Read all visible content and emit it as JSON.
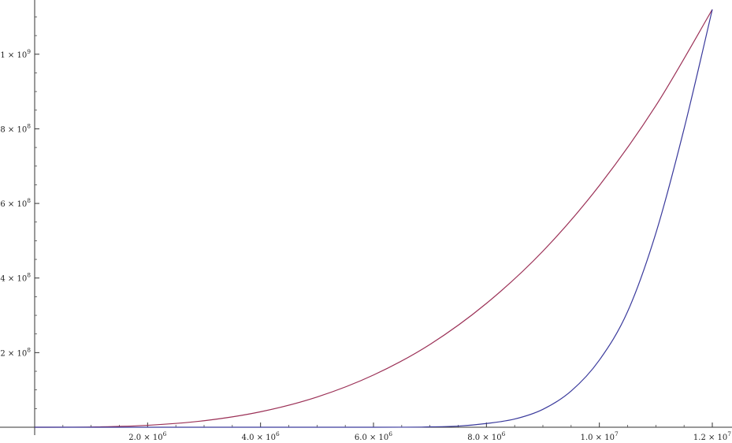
{
  "chart_data": {
    "type": "line",
    "title": "",
    "xlabel": "",
    "ylabel": "",
    "xlim": [
      0,
      12000000
    ],
    "ylim": [
      0,
      1120000000
    ],
    "grid": false,
    "legend": "none",
    "x_ticks": [
      {
        "value": 2000000,
        "mantissa": "2.0",
        "base": "× 10",
        "exp": "6"
      },
      {
        "value": 4000000,
        "mantissa": "4.0",
        "base": "× 10",
        "exp": "6"
      },
      {
        "value": 6000000,
        "mantissa": "6.0",
        "base": "× 10",
        "exp": "6"
      },
      {
        "value": 8000000,
        "mantissa": "8.0",
        "base": "× 10",
        "exp": "6"
      },
      {
        "value": 10000000,
        "mantissa": "1.0",
        "base": "× 10",
        "exp": "7"
      },
      {
        "value": 12000000,
        "mantissa": "1.2",
        "base": "× 10",
        "exp": "7"
      }
    ],
    "y_ticks": [
      {
        "value": 200000000,
        "mantissa": "2",
        "base": "× 10",
        "exp": "8"
      },
      {
        "value": 400000000,
        "mantissa": "4",
        "base": "× 10",
        "exp": "8"
      },
      {
        "value": 600000000,
        "mantissa": "6",
        "base": "× 10",
        "exp": "8"
      },
      {
        "value": 800000000,
        "mantissa": "8",
        "base": "× 10",
        "exp": "8"
      },
      {
        "value": 1000000000,
        "mantissa": "1",
        "base": "× 10",
        "exp": "9"
      }
    ],
    "series": [
      {
        "color": "#9b3056",
        "x": [
          0,
          1000000,
          2000000,
          3000000,
          4000000,
          5000000,
          6000000,
          7000000,
          8000000,
          9000000,
          10000000,
          11000000,
          12000000
        ],
        "y": [
          0,
          650000,
          5200000,
          17500000,
          41500000,
          81000000,
          140000000,
          222000000,
          332000000,
          472000000,
          648000000,
          862000000,
          1120000000
        ]
      },
      {
        "color": "#3a3a9c",
        "x": [
          0,
          6000000,
          7000000,
          7500000,
          8000000,
          8500000,
          9000000,
          9500000,
          10000000,
          10500000,
          11000000,
          11500000,
          12000000
        ],
        "y": [
          0,
          0,
          1000000,
          3000000,
          10000000,
          22000000,
          48000000,
          97000000,
          180000000,
          310000000,
          520000000,
          800000000,
          1120000000
        ]
      }
    ]
  }
}
